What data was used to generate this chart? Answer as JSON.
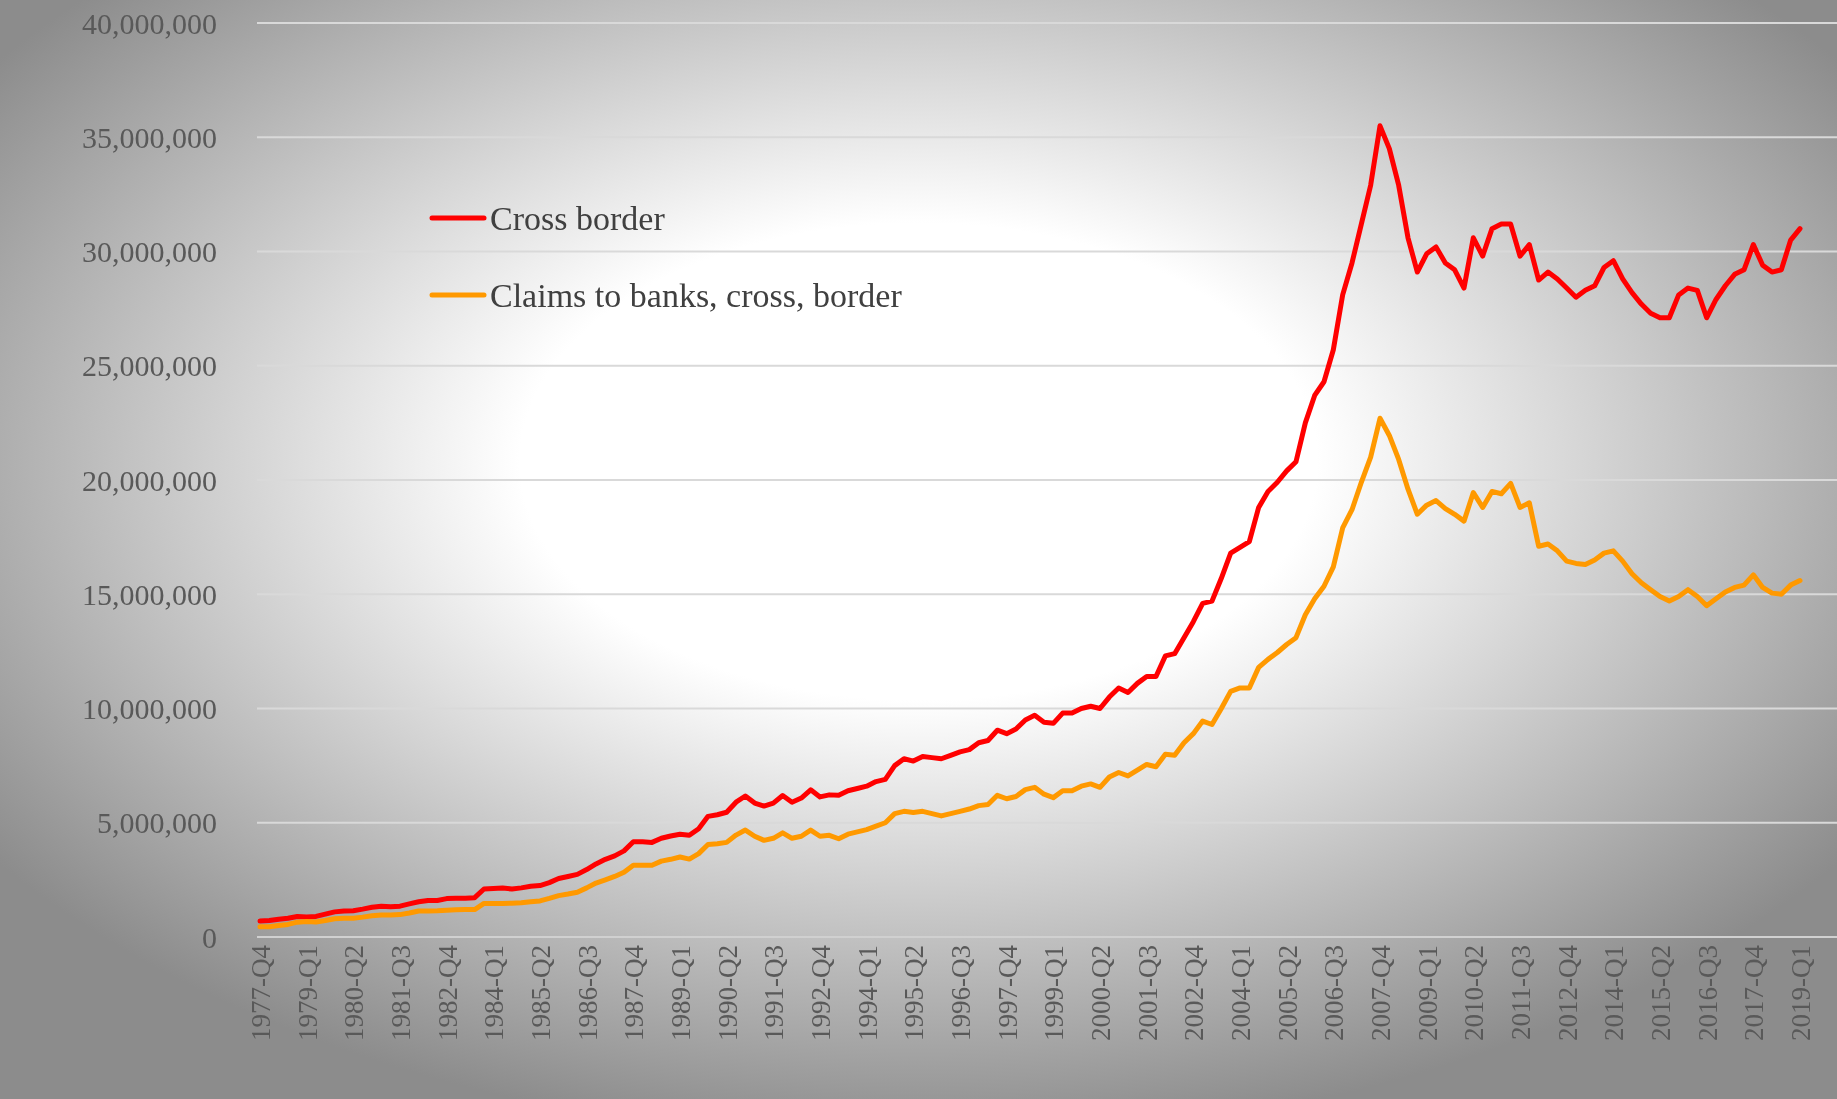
{
  "chart_data": {
    "type": "line",
    "categories": [
      "1977-Q4",
      null,
      null,
      null,
      null,
      "1979-Q1",
      null,
      null,
      null,
      null,
      "1980-Q2",
      null,
      null,
      null,
      null,
      "1981-Q3",
      null,
      null,
      null,
      null,
      "1982-Q4",
      null,
      null,
      null,
      null,
      "1984-Q1",
      null,
      null,
      null,
      null,
      "1985-Q2",
      null,
      null,
      null,
      null,
      "1986-Q3",
      null,
      null,
      null,
      null,
      "1987-Q4",
      null,
      null,
      null,
      null,
      "1989-Q1",
      null,
      null,
      null,
      null,
      "1990-Q2",
      null,
      null,
      null,
      null,
      "1991-Q3",
      null,
      null,
      null,
      null,
      "1992-Q4",
      null,
      null,
      null,
      null,
      "1994-Q1",
      null,
      null,
      null,
      null,
      "1995-Q2",
      null,
      null,
      null,
      null,
      "1996-Q3",
      null,
      null,
      null,
      null,
      "1997-Q4",
      null,
      null,
      null,
      null,
      "1999-Q1",
      null,
      null,
      null,
      null,
      "2000-Q2",
      null,
      null,
      null,
      null,
      "2001-Q3",
      null,
      null,
      null,
      null,
      "2002-Q4",
      null,
      null,
      null,
      null,
      "2004-Q1",
      null,
      null,
      null,
      null,
      "2005-Q2",
      null,
      null,
      null,
      null,
      "2006-Q3",
      null,
      null,
      null,
      null,
      "2007-Q4",
      null,
      null,
      null,
      null,
      "2009-Q1",
      null,
      null,
      null,
      null,
      "2010-Q2",
      null,
      null,
      null,
      null,
      "2011-Q3",
      null,
      null,
      null,
      null,
      "2012-Q4",
      null,
      null,
      null,
      null,
      "2014-Q1",
      null,
      null,
      null,
      null,
      "2015-Q2",
      null,
      null,
      null,
      null,
      "2016-Q3",
      null,
      null,
      null,
      null,
      "2017-Q4",
      null,
      null,
      null,
      null,
      "2019-Q1"
    ],
    "series": [
      {
        "name": "Cross border",
        "color": "#ff0000",
        "values": [
          700000,
          720000,
          780000,
          820000,
          900000,
          880000,
          900000,
          1000000,
          1100000,
          1140000,
          1150000,
          1220000,
          1300000,
          1350000,
          1320000,
          1350000,
          1450000,
          1540000,
          1600000,
          1600000,
          1680000,
          1700000,
          1700000,
          1720000,
          2100000,
          2120000,
          2140000,
          2100000,
          2150000,
          2220000,
          2250000,
          2380000,
          2560000,
          2650000,
          2740000,
          2950000,
          3200000,
          3400000,
          3550000,
          3770000,
          4170000,
          4170000,
          4140000,
          4320000,
          4420000,
          4500000,
          4450000,
          4740000,
          5280000,
          5350000,
          5460000,
          5900000,
          6170000,
          5860000,
          5730000,
          5860000,
          6190000,
          5900000,
          6080000,
          6440000,
          6130000,
          6220000,
          6200000,
          6400000,
          6500000,
          6600000,
          6800000,
          6900000,
          7500000,
          7800000,
          7700000,
          7900000,
          7850000,
          7800000,
          7950000,
          8100000,
          8200000,
          8500000,
          8600000,
          9050000,
          8900000,
          9100000,
          9500000,
          9700000,
          9400000,
          9350000,
          9800000,
          9800000,
          10000000,
          10100000,
          10000000,
          10500000,
          10900000,
          10700000,
          11100000,
          11400000,
          11400000,
          12300000,
          12400000,
          13100000,
          13800000,
          14600000,
          14700000,
          15700000,
          16800000,
          17050000,
          17300000,
          18800000,
          19500000,
          19900000,
          20400000,
          20800000,
          22500000,
          23700000,
          24300000,
          25700000,
          28100000,
          29500000,
          31200000,
          32900000,
          35500000,
          34500000,
          32900000,
          30600000,
          29100000,
          29900000,
          30200000,
          29500000,
          29200000,
          28400000,
          30600000,
          29800000,
          31000000,
          31200000,
          31200000,
          29800000,
          30300000,
          28750000,
          29100000,
          28800000,
          28400000,
          28000000,
          28300000,
          28500000,
          29300000,
          29600000,
          28800000,
          28200000,
          27700000,
          27300000,
          27100000,
          27100000,
          28100000,
          28400000,
          28300000,
          27100000,
          27900000,
          28500000,
          29000000,
          29200000,
          30300000,
          29400000,
          29100000,
          29200000,
          30500000,
          31000000
        ]
      },
      {
        "name": "Claims to banks, cross, border",
        "color": "#ff9900",
        "values": [
          450000,
          450000,
          500000,
          550000,
          650000,
          680000,
          660000,
          720000,
          800000,
          820000,
          820000,
          870000,
          930000,
          960000,
          960000,
          980000,
          1050000,
          1140000,
          1140000,
          1150000,
          1170000,
          1190000,
          1200000,
          1200000,
          1470000,
          1470000,
          1470000,
          1480000,
          1500000,
          1540000,
          1580000,
          1690000,
          1810000,
          1880000,
          1960000,
          2150000,
          2360000,
          2500000,
          2650000,
          2830000,
          3140000,
          3140000,
          3140000,
          3320000,
          3400000,
          3500000,
          3410000,
          3650000,
          4050000,
          4080000,
          4140000,
          4460000,
          4680000,
          4410000,
          4230000,
          4320000,
          4560000,
          4320000,
          4410000,
          4680000,
          4410000,
          4450000,
          4300000,
          4500000,
          4600000,
          4700000,
          4850000,
          5000000,
          5400000,
          5500000,
          5450000,
          5500000,
          5400000,
          5300000,
          5400000,
          5500000,
          5600000,
          5750000,
          5800000,
          6200000,
          6050000,
          6150000,
          6450000,
          6550000,
          6250000,
          6100000,
          6400000,
          6400000,
          6600000,
          6700000,
          6550000,
          7000000,
          7200000,
          7050000,
          7300000,
          7550000,
          7450000,
          8000000,
          7950000,
          8500000,
          8900000,
          9450000,
          9300000,
          10000000,
          10750000,
          10900000,
          10900000,
          11800000,
          12150000,
          12450000,
          12800000,
          13100000,
          14100000,
          14800000,
          15350000,
          16200000,
          17900000,
          18700000,
          19900000,
          21000000,
          22700000,
          21950000,
          20900000,
          19600000,
          18500000,
          18900000,
          19100000,
          18750000,
          18500000,
          18200000,
          19450000,
          18800000,
          19500000,
          19400000,
          19850000,
          18800000,
          19000000,
          17100000,
          17200000,
          16900000,
          16450000,
          16350000,
          16300000,
          16500000,
          16800000,
          16900000,
          16450000,
          15900000,
          15500000,
          15200000,
          14900000,
          14700000,
          14900000,
          15200000,
          14900000,
          14500000,
          14800000,
          15100000,
          15300000,
          15400000,
          15850000,
          15300000,
          15050000,
          15000000,
          15400000,
          15600000
        ]
      }
    ],
    "ylim": [
      0,
      40000000
    ],
    "yticks": [
      {
        "value": 0,
        "label": "0"
      },
      {
        "value": 5000000,
        "label": "5,000,000"
      },
      {
        "value": 10000000,
        "label": "10,000,000"
      },
      {
        "value": 15000000,
        "label": "15,000,000"
      },
      {
        "value": 20000000,
        "label": "20,000,000"
      },
      {
        "value": 25000000,
        "label": "25,000,000"
      },
      {
        "value": 30000000,
        "label": "30,000,000"
      },
      {
        "value": 35000000,
        "label": "35,000,000"
      },
      {
        "value": 40000000,
        "label": "40,000,000"
      }
    ],
    "grid": "y",
    "legend": "top left",
    "marker": "none",
    "line_style": "solid"
  }
}
